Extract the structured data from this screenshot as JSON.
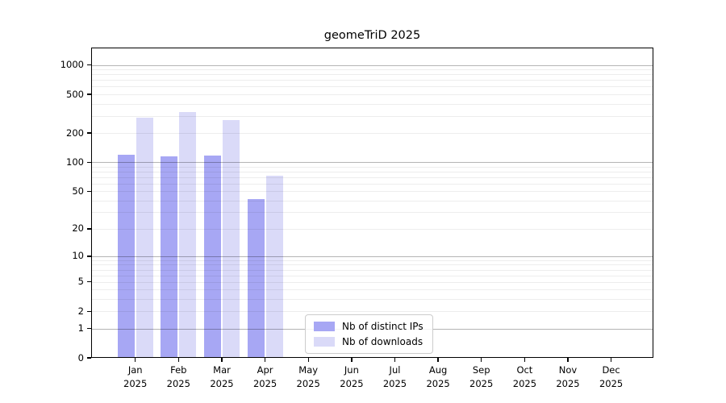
{
  "chart_data": {
    "type": "bar",
    "title": "geomeTriD 2025",
    "year_label": "2025",
    "categories": [
      "Jan",
      "Feb",
      "Mar",
      "Apr",
      "May",
      "Jun",
      "Jul",
      "Aug",
      "Sep",
      "Oct",
      "Nov",
      "Dec"
    ],
    "series": [
      {
        "name": "Nb of distinct IPs",
        "color": "#a7a7f4",
        "values": [
          119,
          115,
          118,
          41,
          0,
          0,
          0,
          0,
          0,
          0,
          0,
          0
        ]
      },
      {
        "name": "Nb of downloads",
        "color": "#dadaf8",
        "values": [
          287,
          331,
          272,
          73,
          0,
          0,
          0,
          0,
          0,
          0,
          0,
          0
        ]
      }
    ],
    "y_ticks": [
      0,
      1,
      2,
      5,
      10,
      20,
      50,
      100,
      200,
      500,
      1000
    ],
    "y_scale": "log1p",
    "ylim": [
      0,
      1500
    ],
    "grid": "horizontal",
    "legend_position": "bottom-center-inside",
    "colors": {
      "axis": "#000000",
      "major_gridline": "#b4b4b4",
      "minor_gridline": "#ebebeb",
      "background": "#ffffff",
      "legend_border": "#cccccc"
    }
  }
}
